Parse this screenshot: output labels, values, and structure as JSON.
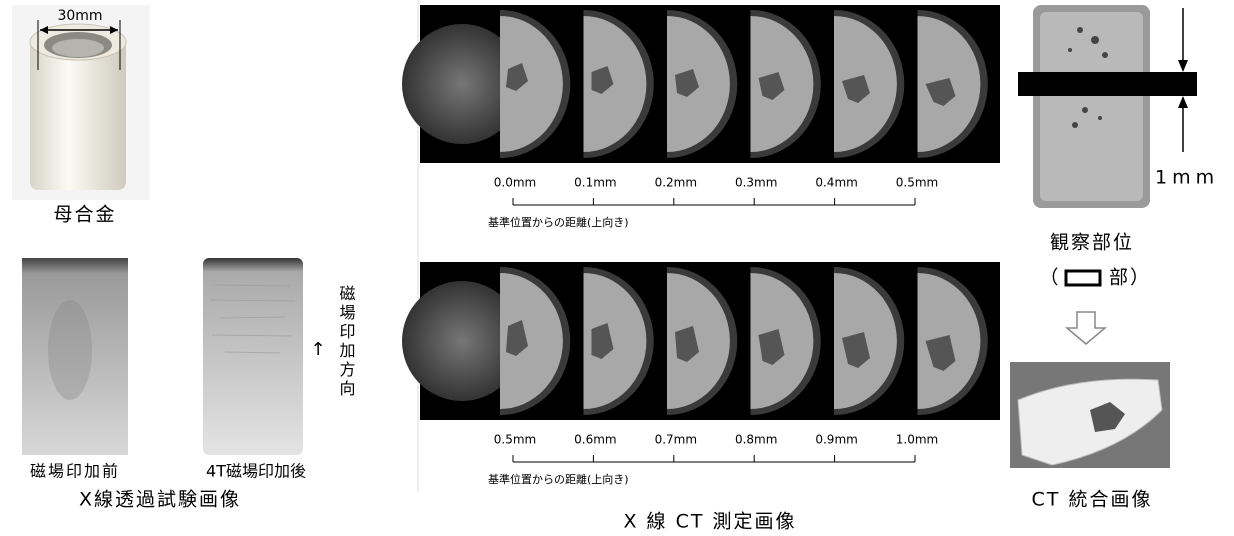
{
  "left": {
    "dimension_label": "30mm",
    "alloy_caption": "母合金",
    "before_caption": "磁場印加前",
    "after_caption": "4T磁場印加後",
    "direction_arrow": "↑",
    "direction_label": "磁場印加方向",
    "section_title": "X線透過試験画像"
  },
  "middle": {
    "rows": [
      {
        "ticks": [
          "0.0mm",
          "0.1mm",
          "0.2mm",
          "0.3mm",
          "0.4mm",
          "0.5mm"
        ],
        "axis_label": "基準位置からの距離(上向き)"
      },
      {
        "ticks": [
          "0.5mm",
          "0.6mm",
          "0.7mm",
          "0.8mm",
          "0.9mm",
          "1.0mm"
        ],
        "axis_label": "基準位置からの距離(上向き)"
      }
    ],
    "section_title": "X 線 CT 測定画像"
  },
  "right": {
    "thickness_label": "1mm",
    "observation_caption": "観察部位",
    "region_open": "（",
    "region_close": "部）",
    "section_title": "CT 統合画像"
  }
}
